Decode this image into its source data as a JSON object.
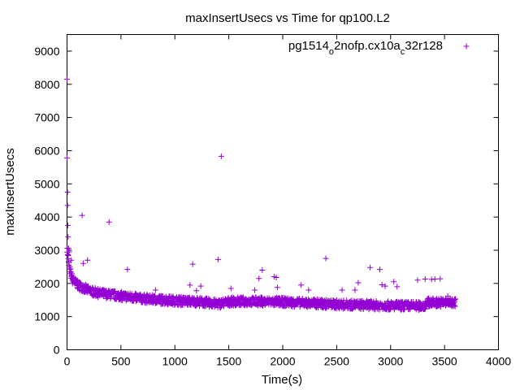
{
  "chart_data": {
    "type": "scatter",
    "title": "maxInsertUsecs vs Time for qp100.L2",
    "xlabel": "Time(s)",
    "ylabel": "maxInsertUsecs",
    "xlim": [
      0,
      4000
    ],
    "ylim": [
      0,
      9500
    ],
    "x_ticks": [
      "0",
      "500",
      "1000",
      "1500",
      "2000",
      "2500",
      "3000",
      "3500",
      "4000"
    ],
    "y_ticks": [
      "0",
      "1000",
      "2000",
      "3000",
      "4000",
      "5000",
      "6000",
      "7000",
      "8000",
      "9000"
    ],
    "grid": false,
    "legend_position": "top-right",
    "marker": "+",
    "color": "#9400d3",
    "series": [
      {
        "name": "pg1514_o2nofp.cx10a_c32r128",
        "legend_parts": [
          {
            "text": "pg1514",
            "sub": false
          },
          {
            "text": "o",
            "sub": true
          },
          {
            "text": "2nofp.cx10a",
            "sub": false
          },
          {
            "text": "c",
            "sub": true
          },
          {
            "text": "32r128",
            "sub": false
          }
        ],
        "outliers": [
          [
            0,
            8150
          ],
          [
            0,
            5780
          ],
          [
            5,
            4750
          ],
          [
            5,
            4350
          ],
          [
            8,
            3750
          ],
          [
            10,
            3400
          ],
          [
            15,
            3050
          ],
          [
            20,
            2950
          ],
          [
            40,
            2700
          ],
          [
            140,
            4050
          ],
          [
            190,
            2700
          ],
          [
            150,
            2600
          ],
          [
            390,
            3850
          ],
          [
            560,
            2420
          ],
          [
            820,
            1800
          ],
          [
            1140,
            1950
          ],
          [
            1165,
            2580
          ],
          [
            1200,
            1780
          ],
          [
            1240,
            1920
          ],
          [
            1400,
            2720
          ],
          [
            1430,
            5830
          ],
          [
            1520,
            1850
          ],
          [
            1740,
            1800
          ],
          [
            1780,
            2150
          ],
          [
            1810,
            2400
          ],
          [
            1920,
            2200
          ],
          [
            1940,
            2180
          ],
          [
            1950,
            1880
          ],
          [
            2170,
            1950
          ],
          [
            2240,
            1800
          ],
          [
            2400,
            2750
          ],
          [
            2550,
            1800
          ],
          [
            2670,
            1800
          ],
          [
            2700,
            2020
          ],
          [
            2810,
            2480
          ],
          [
            2900,
            2420
          ],
          [
            2920,
            1960
          ],
          [
            2950,
            1920
          ],
          [
            3030,
            2050
          ],
          [
            3060,
            1900
          ],
          [
            3250,
            2100
          ],
          [
            3320,
            2130
          ],
          [
            3380,
            2120
          ],
          [
            3410,
            2130
          ],
          [
            3460,
            2140
          ],
          [
            3530,
            1620
          ]
        ],
        "trend": [
          [
            0,
            3000
          ],
          [
            20,
            2400
          ],
          [
            50,
            2100
          ],
          [
            100,
            1950
          ],
          [
            200,
            1780
          ],
          [
            300,
            1700
          ],
          [
            500,
            1620
          ],
          [
            700,
            1540
          ],
          [
            1000,
            1480
          ],
          [
            1200,
            1450
          ],
          [
            1300,
            1420
          ],
          [
            1400,
            1380
          ],
          [
            1500,
            1450
          ],
          [
            1700,
            1460
          ],
          [
            2000,
            1440
          ],
          [
            2500,
            1370
          ],
          [
            3000,
            1330
          ],
          [
            3300,
            1320
          ],
          [
            3350,
            1430
          ],
          [
            3600,
            1420
          ]
        ],
        "x_end": 3600,
        "spread": 130
      }
    ]
  }
}
